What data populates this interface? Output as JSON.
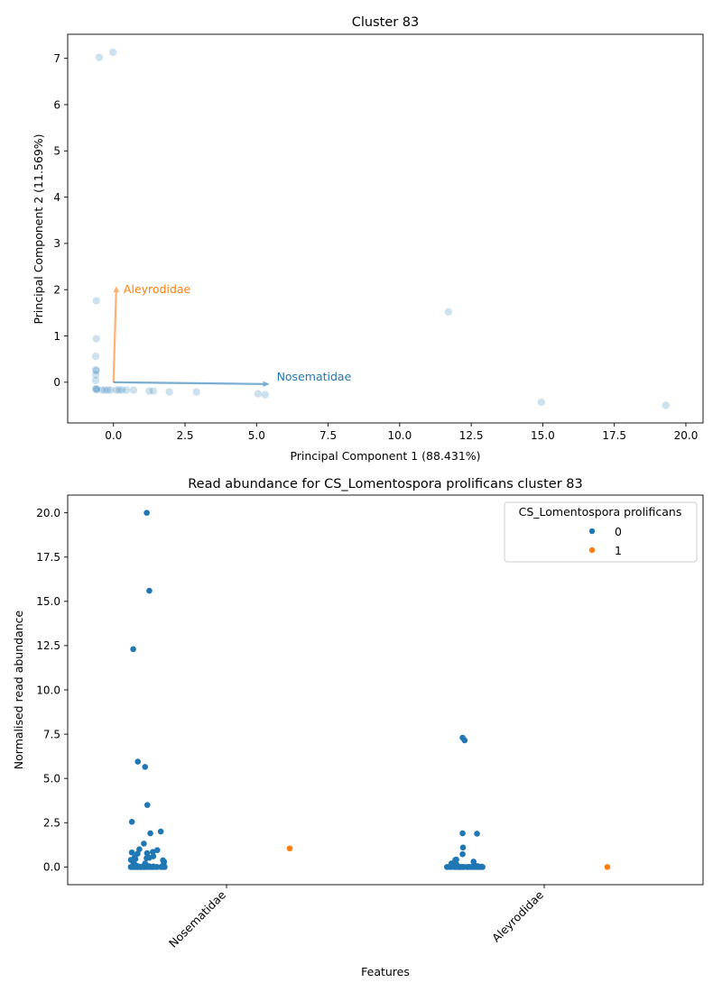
{
  "chart_data": [
    {
      "type": "scatter",
      "title": "Cluster 83",
      "xlabel": "Principal Component 1 (88.431%)",
      "ylabel": "Principal Component 2 (11.569%)",
      "xlim": [
        -1.6,
        20.6
      ],
      "ylim": [
        -0.88,
        7.52
      ],
      "xticks": [
        0,
        2.5,
        5,
        7.5,
        10,
        12.5,
        15,
        17.5,
        20
      ],
      "xtick_labels": [
        "0.0",
        "2.5",
        "5.0",
        "7.5",
        "10.0",
        "12.5",
        "15.0",
        "17.5",
        "20.0"
      ],
      "yticks": [
        0,
        1,
        2,
        3,
        4,
        5,
        6,
        7
      ],
      "ytick_labels": [
        "0",
        "1",
        "2",
        "3",
        "4",
        "5",
        "6",
        "7"
      ],
      "grid": false,
      "point_color": "#1f77b4",
      "points": [
        {
          "x": -0.5,
          "y": 7.02
        },
        {
          "x": -0.02,
          "y": 7.13
        },
        {
          "x": -0.6,
          "y": 1.76
        },
        {
          "x": -0.6,
          "y": 0.94
        },
        {
          "x": -0.62,
          "y": 0.56
        },
        {
          "x": -0.62,
          "y": 0.27
        },
        {
          "x": -0.6,
          "y": 0.25
        },
        {
          "x": -0.62,
          "y": 0.16
        },
        {
          "x": -0.62,
          "y": 0.04
        },
        {
          "x": -0.62,
          "y": -0.14
        },
        {
          "x": -0.6,
          "y": -0.16
        },
        {
          "x": -0.58,
          "y": -0.15
        },
        {
          "x": -0.4,
          "y": -0.17
        },
        {
          "x": -0.3,
          "y": -0.17
        },
        {
          "x": -0.2,
          "y": -0.17
        },
        {
          "x": -0.1,
          "y": -0.17
        },
        {
          "x": 0.1,
          "y": -0.17
        },
        {
          "x": 0.2,
          "y": -0.17
        },
        {
          "x": 0.3,
          "y": -0.17
        },
        {
          "x": 0.45,
          "y": -0.17
        },
        {
          "x": 0.7,
          "y": -0.17
        },
        {
          "x": 1.25,
          "y": -0.19
        },
        {
          "x": 1.4,
          "y": -0.19
        },
        {
          "x": 1.95,
          "y": -0.21
        },
        {
          "x": 2.9,
          "y": -0.21
        },
        {
          "x": 5.05,
          "y": -0.25
        },
        {
          "x": 5.3,
          "y": -0.27
        },
        {
          "x": 11.7,
          "y": 1.52
        },
        {
          "x": 14.95,
          "y": -0.43
        },
        {
          "x": 19.3,
          "y": -0.5
        }
      ],
      "vectors": [
        {
          "name": "Aleyrodidae",
          "x": 0.1,
          "y": 2.08,
          "color": "#ff7f0e"
        },
        {
          "name": "Nosematidae",
          "x": 5.45,
          "y": -0.04,
          "color": "#1f77b4"
        }
      ]
    },
    {
      "type": "strip",
      "title": "Read abundance for CS_Lomentospora prolificans cluster 83",
      "xlabel": "Features",
      "ylabel": "Normalised read abundance",
      "categories": [
        "Nosematidae",
        "Aleyrodidae"
      ],
      "ylim": [
        -1.0,
        21.0
      ],
      "yticks": [
        0,
        2.5,
        5,
        7.5,
        10,
        12.5,
        15,
        17.5,
        20
      ],
      "ytick_labels": [
        "0.0",
        "2.5",
        "5.0",
        "7.5",
        "10.0",
        "12.5",
        "15.0",
        "17.5",
        "20.0"
      ],
      "grid": false,
      "legend": {
        "title": "CS_Lomentospora prolificans",
        "placement": "top-right",
        "entries": [
          {
            "label": "0",
            "color": "#1f77b4"
          },
          {
            "label": "1",
            "color": "#ff7f0e"
          }
        ]
      },
      "series": [
        {
          "name": "0",
          "color": "#1f77b4",
          "groups": [
            {
              "category": "Nosematidae",
              "values": [
                20.0,
                15.6,
                12.3,
                5.95,
                5.65,
                3.5,
                2.55,
                2.0,
                1.9,
                1.32,
                1.0,
                0.95,
                0.85,
                0.82,
                0.78,
                0.75,
                0.6,
                0.55,
                0.52,
                0.5,
                0.45,
                0.4,
                0.38,
                0.3,
                0.25,
                0.2,
                0.15,
                0.1,
                0.08,
                0.05,
                0.03,
                0.02,
                0.01,
                0.0,
                0.0,
                0.0,
                0.0,
                0.0,
                0.0,
                0.0,
                0.0,
                0.0,
                0.0,
                0.0,
                0.0,
                0.0,
                0.0,
                0.0,
                0.0,
                0.0,
                0.0,
                0.0,
                0.0,
                0.0,
                0.0,
                0.0,
                0.0,
                0.0,
                0.0,
                0.0,
                0.0,
                0.0
              ]
            },
            {
              "category": "Aleyrodidae",
              "values": [
                7.3,
                7.15,
                1.9,
                1.88,
                1.1,
                0.72,
                0.42,
                0.4,
                0.3,
                0.2,
                0.15,
                0.1,
                0.05,
                0.02,
                0.0,
                0.0,
                0.0,
                0.0,
                0.0,
                0.0,
                0.0,
                0.0,
                0.0,
                0.0,
                0.0,
                0.0,
                0.0,
                0.0,
                0.0,
                0.0,
                0.0,
                0.0,
                0.0,
                0.0,
                0.0,
                0.0,
                0.0,
                0.0,
                0.0,
                0.0
              ]
            }
          ]
        },
        {
          "name": "1",
          "color": "#ff7f0e",
          "groups": [
            {
              "category": "Nosematidae",
              "values": [
                1.05
              ]
            },
            {
              "category": "Aleyrodidae",
              "values": [
                0.0
              ]
            }
          ]
        }
      ]
    }
  ]
}
